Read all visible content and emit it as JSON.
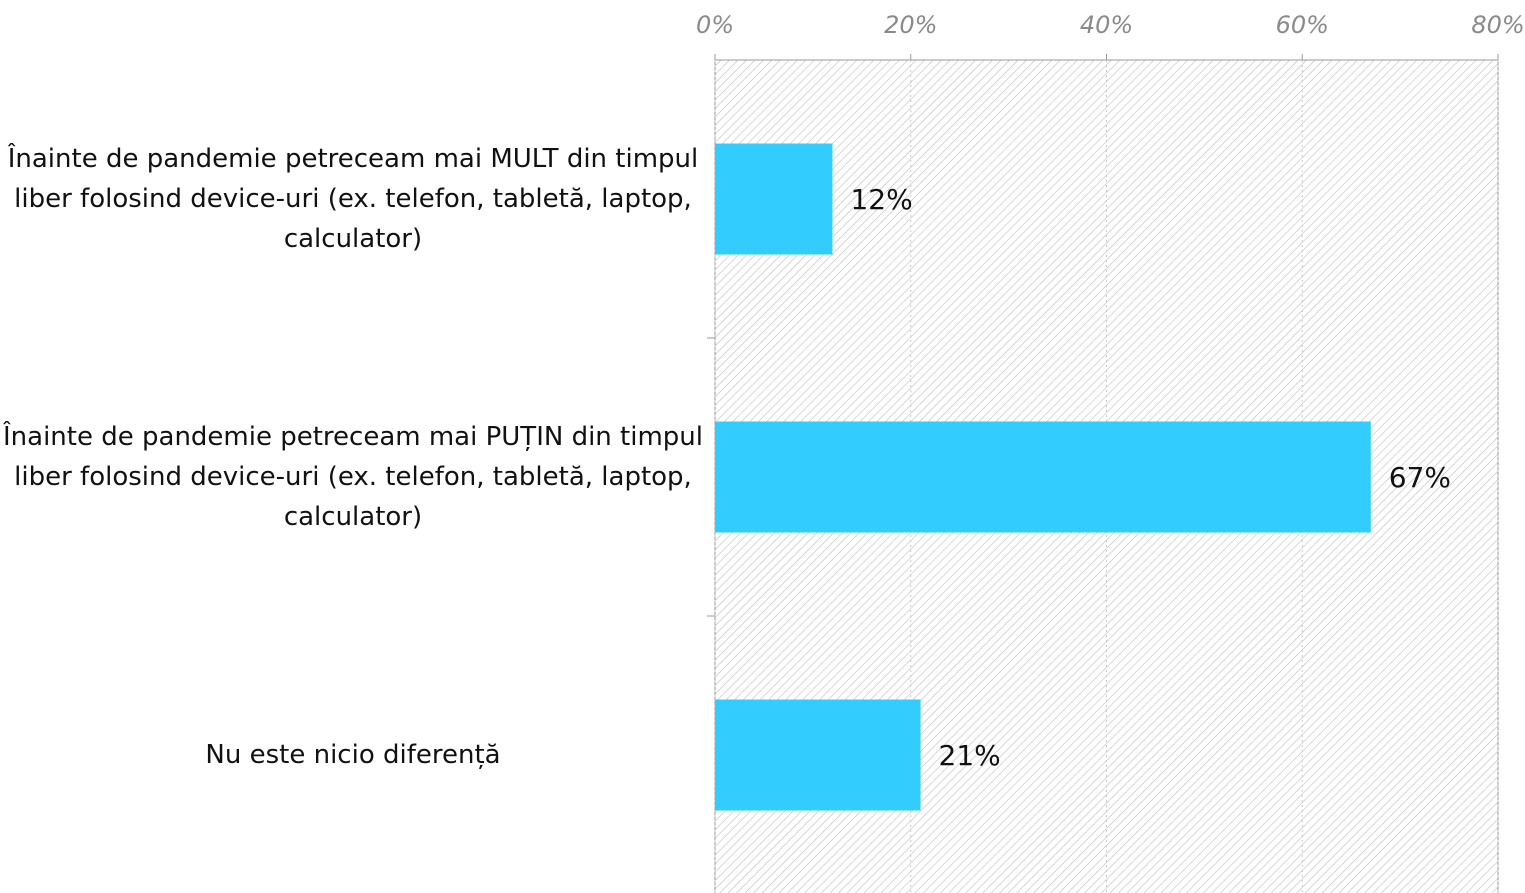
{
  "chart_data": {
    "type": "bar",
    "orientation": "horizontal",
    "categories": [
      "Înainte de pandemie petreceam mai MULT din timpul liber folosind device-uri (ex. telefon, tabletă, laptop, calculator)",
      "Înainte de pandemie petreceam mai PUȚIN din timpul liber folosind device-uri (ex. telefon, tabletă, laptop, calculator)",
      "Nu este nicio diferență"
    ],
    "values": [
      12,
      67,
      21
    ],
    "value_labels": [
      "12%",
      "67%",
      "21%"
    ],
    "color": "#33ccff",
    "xlim": [
      0,
      80
    ],
    "xticks": [
      {
        "value": 0,
        "label": "0%"
      },
      {
        "value": 20,
        "label": "20%"
      },
      {
        "value": 40,
        "label": "40%"
      },
      {
        "value": 60,
        "label": "60%"
      },
      {
        "value": 80,
        "label": "80%"
      }
    ],
    "grid": true
  }
}
